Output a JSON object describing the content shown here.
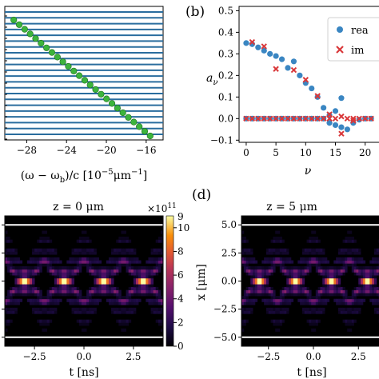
{
  "panel_labels": {
    "b": "(b)",
    "d": "(d)"
  },
  "chart_data": [
    {
      "id": "a",
      "type": "line",
      "xlabel": "(ω − ω_b)/c [10^-5 μm^-1]",
      "xlabel_parts": {
        "pre": "(ω − ω",
        "sub": "b",
        "mid": ")/c [10",
        "sup": "−5",
        "post": "μm",
        "sup2": "−1",
        "end": "]"
      },
      "xlim": [
        -30.2,
        -14.3
      ],
      "xticks": [
        -28,
        -24,
        -20,
        -16
      ],
      "xtick_labels": [
        "−28",
        "−24",
        "−20",
        "−16"
      ],
      "line_color": "#2a6d9e",
      "point_color": "#3cb43c",
      "hlines_count": 22,
      "points": {
        "x_start": -29.3,
        "x_end": -15.6,
        "count": 26
      }
    },
    {
      "id": "b",
      "type": "scatter",
      "xlabel": "ν",
      "ylabel": "aν",
      "xlim": [
        -1.2,
        23
      ],
      "ylim": [
        -0.11,
        0.52
      ],
      "xticks": [
        0,
        5,
        10,
        15,
        20
      ],
      "xtick_labels": [
        "0",
        "5",
        "10",
        "15",
        "20"
      ],
      "yticks": [
        -0.1,
        0.0,
        0.1,
        0.2,
        0.3,
        0.4,
        0.5
      ],
      "ytick_labels": [
        "−0.1",
        "0.0",
        "0.1",
        "0.2",
        "0.3",
        "0.4",
        "0.5"
      ],
      "legend_position": "top-right",
      "series": [
        {
          "name": "rea",
          "marker": "circle",
          "color": "#3a86c2",
          "points": [
            [
              0,
              0.35
            ],
            [
              1,
              0.345
            ],
            [
              2,
              0.33
            ],
            [
              3,
              0.315
            ],
            [
              4,
              0.3
            ],
            [
              5,
              0.29
            ],
            [
              6,
              0.275
            ],
            [
              7,
              0.235
            ],
            [
              8,
              0.265
            ],
            [
              9,
              0.2
            ],
            [
              10,
              0.165
            ],
            [
              11,
              0.14
            ],
            [
              12,
              0.1
            ],
            [
              13,
              0.05
            ],
            [
              14,
              0.015
            ],
            [
              15,
              -0.03
            ],
            [
              16,
              0.095
            ],
            [
              17,
              -0.05
            ],
            [
              18,
              -0.02
            ],
            [
              19,
              -0.005
            ],
            [
              20,
              0.0
            ],
            [
              21,
              0.0
            ],
            [
              0,
              0.0
            ],
            [
              1,
              0.0
            ],
            [
              2,
              0.0
            ],
            [
              3,
              0.0
            ],
            [
              4,
              0.0
            ],
            [
              5,
              0.0
            ],
            [
              6,
              0.0
            ],
            [
              7,
              0.0
            ],
            [
              8,
              0.0
            ],
            [
              9,
              0.0
            ],
            [
              10,
              0.0
            ],
            [
              11,
              0.0
            ],
            [
              12,
              0.0
            ],
            [
              13,
              0.0
            ],
            [
              14,
              -0.02
            ],
            [
              15,
              0.035
            ],
            [
              16,
              -0.04
            ]
          ]
        },
        {
          "name": "im",
          "marker": "x",
          "color": "#d9383a",
          "points": [
            [
              0,
              0.0
            ],
            [
              1,
              0.0
            ],
            [
              2,
              0.0
            ],
            [
              3,
              0.0
            ],
            [
              4,
              0.0
            ],
            [
              5,
              0.0
            ],
            [
              6,
              0.0
            ],
            [
              7,
              0.0
            ],
            [
              8,
              0.0
            ],
            [
              9,
              0.0
            ],
            [
              10,
              0.0
            ],
            [
              11,
              0.0
            ],
            [
              12,
              0.0
            ],
            [
              13,
              0.0
            ],
            [
              14,
              0.0
            ],
            [
              15,
              0.0
            ],
            [
              16,
              -0.07
            ],
            [
              17,
              0.0
            ],
            [
              18,
              0.0
            ],
            [
              19,
              0.0
            ],
            [
              20,
              0.0
            ],
            [
              21,
              0.0
            ],
            [
              1,
              0.355
            ],
            [
              3,
              0.335
            ],
            [
              5,
              0.23
            ],
            [
              8,
              0.225
            ],
            [
              10,
              0.18
            ],
            [
              12,
              0.105
            ],
            [
              14,
              0.02
            ],
            [
              16,
              0.01
            ],
            [
              18,
              -0.01
            ]
          ]
        }
      ]
    },
    {
      "id": "c",
      "type": "heatmap",
      "title": "z = 0 μm",
      "xlabel": "t [ns]",
      "xlim": [
        -4,
        4
      ],
      "ylim": [
        -5.8,
        5.8
      ],
      "xticks": [
        -2.5,
        0.0,
        2.5
      ],
      "xtick_labels": [
        "−2.5",
        "0.0",
        "2.5"
      ],
      "yticks": [
        -5.0,
        -2.5,
        0.0,
        2.5,
        5.0
      ],
      "boundary_lines_x_um": [
        -5.0,
        5.0
      ],
      "bright_spots_t_ns": [
        -3.0,
        -1.0,
        1.0,
        3.0
      ],
      "colorbar": {
        "ticks": [
          0,
          2,
          4,
          6,
          8,
          10
        ],
        "tick_labels": [
          "0",
          "2",
          "4",
          "6",
          "8",
          "10"
        ],
        "top_label": "9",
        "top_value_partial": "11",
        "multiplier": "×10",
        "range": [
          0,
          11
        ]
      }
    },
    {
      "id": "d",
      "type": "heatmap",
      "title": "z = 5 μm",
      "xlabel": "t [ns]",
      "ylabel": "x [μm]",
      "xlim": [
        -4,
        4
      ],
      "ylim": [
        -5.8,
        5.8
      ],
      "xticks": [
        -2.5,
        0.0,
        2.5
      ],
      "xtick_labels": [
        "−2.5",
        "0.0",
        "2.5"
      ],
      "yticks": [
        -5.0,
        -2.5,
        0.0,
        2.5,
        5.0
      ],
      "ytick_labels": [
        "−5.0",
        "−2.5",
        "0.0",
        "2.5",
        "5.0"
      ],
      "boundary_lines_x_um": [
        -5.0,
        5.0
      ],
      "bright_spots_t_ns": [
        -3.0,
        -1.0,
        1.0,
        3.0
      ]
    }
  ]
}
